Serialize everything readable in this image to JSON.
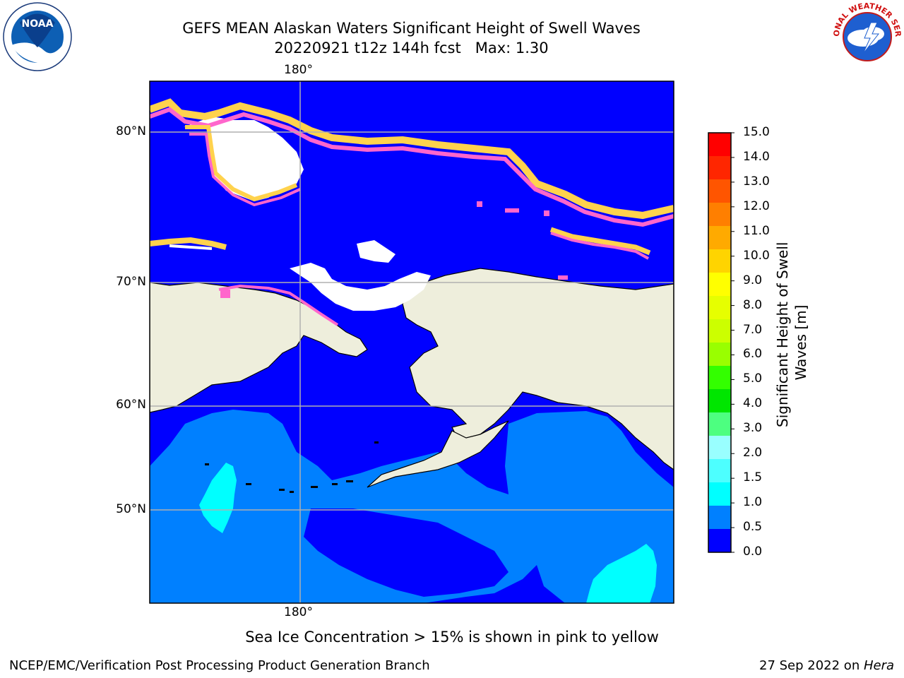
{
  "title": {
    "line1": "GEFS MEAN Alaskan Waters Significant Height of Swell Waves",
    "line2": "20220921 t12z 144h fcst   Max: 1.30"
  },
  "map": {
    "lon_labels": [
      "180°",
      "180°"
    ],
    "lat_labels": [
      "80°N",
      "70°N",
      "60°N",
      "50°N"
    ],
    "colors": {
      "ocean_low": "#0000ff",
      "ocean_mid": "#0080ff",
      "ocean_high": "#00ffff",
      "land": "#eeeedc",
      "ice_pink": "#ff66cc",
      "ice_yellow": "#ffd24d",
      "ice_white": "#ffffff",
      "grid": "#b0b0b0"
    }
  },
  "colorbar": {
    "title": "Significant Height of Swell Waves [m]",
    "title_line1": "Significant Height of Swell",
    "title_line2": "Waves [m]",
    "ticks": [
      "15.0",
      "14.0",
      "13.0",
      "12.0",
      "11.0",
      "10.0",
      "9.0",
      "8.0",
      "7.0",
      "6.0",
      "5.0",
      "4.0",
      "3.0",
      "2.0",
      "1.5",
      "1.0",
      "0.5",
      "0.0"
    ],
    "colors_top_to_bottom": [
      "#ff0000",
      "#ff2600",
      "#ff5500",
      "#ff7f00",
      "#ffaa00",
      "#ffd400",
      "#ffff00",
      "#e6ff00",
      "#ccff00",
      "#99ff00",
      "#33ff00",
      "#00e600",
      "#4dff80",
      "#99ffff",
      "#4dffff",
      "#00ffff",
      "#0080ff",
      "#0000ff"
    ]
  },
  "footnote": "Sea Ice Concentration > 15% is shown in pink to yellow",
  "credit": {
    "left": "NCEP/EMC/Verification Post Processing Product Generation Branch",
    "right_date": "27 Sep 2022 on ",
    "right_host": "Hera"
  },
  "logos": {
    "noaa_text": "NOAA",
    "nws_text": "NATIONAL WEATHER SERVICE"
  }
}
